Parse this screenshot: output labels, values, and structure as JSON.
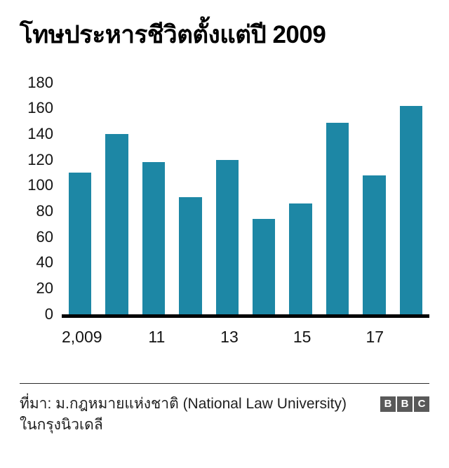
{
  "chart_data": {
    "type": "bar",
    "title": "โทษประหารชีวิตตั้งแต่ปี 2009",
    "categories": [
      "2009",
      "2010",
      "2011",
      "2012",
      "2013",
      "2014",
      "2015",
      "2016",
      "2017",
      "2018"
    ],
    "values": [
      110,
      140,
      118,
      91,
      120,
      74,
      86,
      149,
      108,
      162
    ],
    "x_tick_labels": [
      "2,009",
      "",
      "11",
      "",
      "13",
      "",
      "15",
      "",
      "17",
      ""
    ],
    "y_ticks": [
      0,
      20,
      40,
      60,
      80,
      100,
      120,
      140,
      160,
      180
    ],
    "ylim": [
      0,
      180
    ],
    "bar_color": "#1d87a5",
    "grid": false,
    "legend_position": "none",
    "xlabel": "",
    "ylabel": ""
  },
  "footer": {
    "source": "ที่มา: ม.กฎหมายแห่งชาติ (National Law University) ในกรุงนิวเดลี",
    "logo": [
      "B",
      "B",
      "C"
    ]
  }
}
